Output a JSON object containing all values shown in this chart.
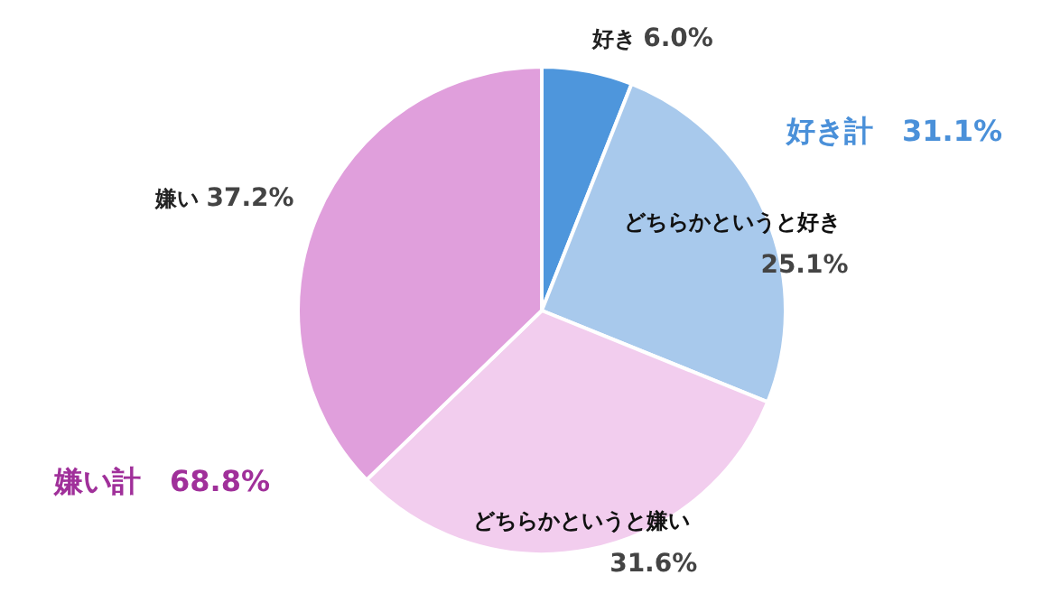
{
  "chart_data": {
    "type": "pie",
    "categories": [
      "好き",
      "どちらかというと好き",
      "どちらかというと嫌い",
      "嫌い"
    ],
    "values": [
      6.0,
      25.1,
      31.6,
      37.2
    ],
    "value_labels": [
      "6.0%",
      "25.1%",
      "31.6%",
      "37.2%"
    ],
    "colors": [
      "#4e96dc",
      "#a8c9ec",
      "#f2cdee",
      "#e09fdc"
    ],
    "annotations": [
      "好き計　31.1%",
      "嫌い計　68.8%"
    ]
  }
}
